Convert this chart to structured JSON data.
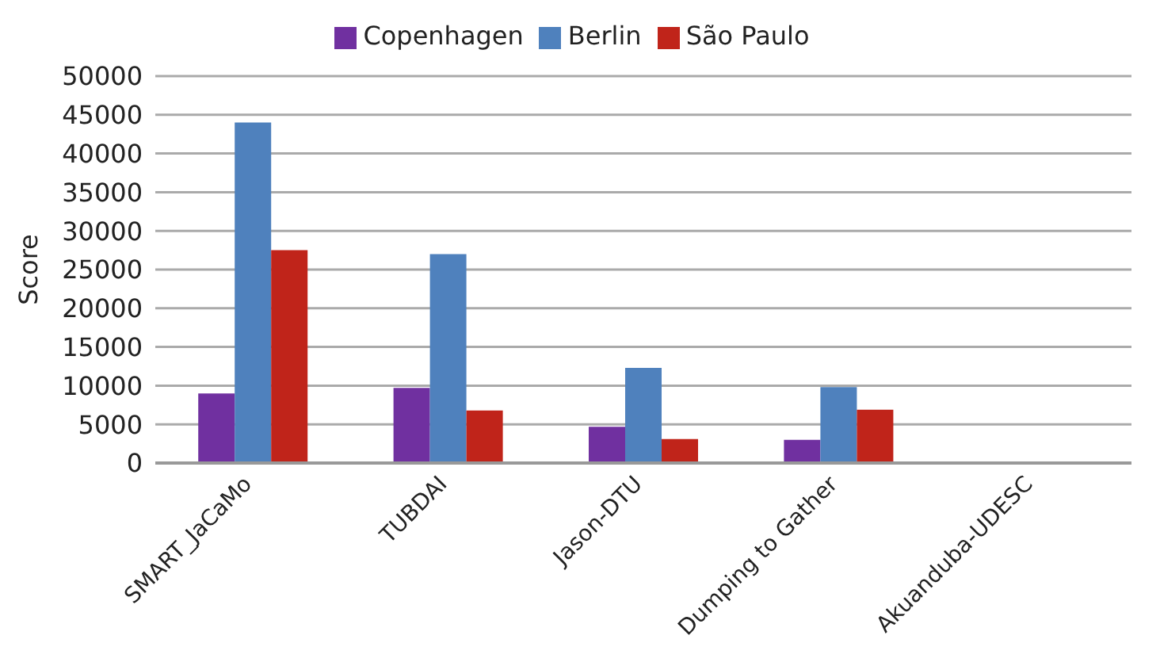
{
  "chart_data": {
    "type": "bar",
    "ylabel": "Score",
    "categories": [
      "SMART_JaCaMo",
      "TUBDAI",
      "Jason-DTU",
      "Dumping to Gather",
      "Akuanduba-UDESC"
    ],
    "series": [
      {
        "name": "Copenhagen",
        "color": "#7030a0",
        "values": [
          9000,
          9700,
          4700,
          3000,
          0
        ]
      },
      {
        "name": "Berlin",
        "color": "#4f81bd",
        "values": [
          44000,
          27000,
          12300,
          9800,
          0
        ]
      },
      {
        "name": "São Paulo",
        "color": "#c0241a",
        "values": [
          27500,
          6800,
          3100,
          6900,
          0
        ]
      }
    ],
    "ylim": [
      0,
      50000
    ],
    "yticks": [
      0,
      5000,
      10000,
      15000,
      20000,
      25000,
      30000,
      35000,
      40000,
      45000,
      50000
    ],
    "grid": "y",
    "legend": "top"
  }
}
